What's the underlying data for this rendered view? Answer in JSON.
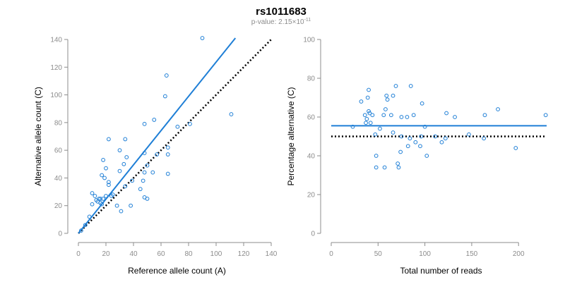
{
  "title": "rs1011683",
  "subtitle": {
    "prefix": "p-value: ",
    "mantissa": "2.15",
    "times": "×10",
    "exponent": "-11"
  },
  "colors": {
    "accent": "#1f7fd6",
    "axis": "#8c8c8c",
    "reference": "#000000"
  },
  "chart_data": [
    {
      "type": "scatter",
      "title": "",
      "xlabel": "Reference allele count (A)",
      "ylabel": "Alternative allele count (C)",
      "xlim": [
        0,
        140
      ],
      "ylim": [
        0,
        140
      ],
      "xticks": [
        "0",
        "20",
        "40",
        "60",
        "80",
        "100",
        "120",
        "140"
      ],
      "yticks": [
        "0",
        "20",
        "40",
        "60",
        "80",
        "100",
        "120",
        "140"
      ],
      "points": [
        {
          "x": 2,
          "y": 2
        },
        {
          "x": 5,
          "y": 6
        },
        {
          "x": 8,
          "y": 12
        },
        {
          "x": 10,
          "y": 21
        },
        {
          "x": 10,
          "y": 29
        },
        {
          "x": 12,
          "y": 27
        },
        {
          "x": 13,
          "y": 24
        },
        {
          "x": 14,
          "y": 23
        },
        {
          "x": 15,
          "y": 25
        },
        {
          "x": 16,
          "y": 22
        },
        {
          "x": 16,
          "y": 25
        },
        {
          "x": 17,
          "y": 21
        },
        {
          "x": 17,
          "y": 42
        },
        {
          "x": 18,
          "y": 53
        },
        {
          "x": 18,
          "y": 25
        },
        {
          "x": 19,
          "y": 40
        },
        {
          "x": 20,
          "y": 27
        },
        {
          "x": 20,
          "y": 47
        },
        {
          "x": 22,
          "y": 68
        },
        {
          "x": 22,
          "y": 37
        },
        {
          "x": 22,
          "y": 35
        },
        {
          "x": 24,
          "y": 27
        },
        {
          "x": 25,
          "y": 28
        },
        {
          "x": 28,
          "y": 20
        },
        {
          "x": 30,
          "y": 60
        },
        {
          "x": 30,
          "y": 45
        },
        {
          "x": 31,
          "y": 16
        },
        {
          "x": 33,
          "y": 50
        },
        {
          "x": 34,
          "y": 68
        },
        {
          "x": 34,
          "y": 34
        },
        {
          "x": 35,
          "y": 55
        },
        {
          "x": 38,
          "y": 20
        },
        {
          "x": 39,
          "y": 38
        },
        {
          "x": 45,
          "y": 32
        },
        {
          "x": 47,
          "y": 38
        },
        {
          "x": 48,
          "y": 26
        },
        {
          "x": 48,
          "y": 44
        },
        {
          "x": 48,
          "y": 58
        },
        {
          "x": 48,
          "y": 79
        },
        {
          "x": 50,
          "y": 25
        },
        {
          "x": 50,
          "y": 49
        },
        {
          "x": 54,
          "y": 44
        },
        {
          "x": 55,
          "y": 82
        },
        {
          "x": 57,
          "y": 57
        },
        {
          "x": 63,
          "y": 99
        },
        {
          "x": 64,
          "y": 114
        },
        {
          "x": 65,
          "y": 62
        },
        {
          "x": 65,
          "y": 57
        },
        {
          "x": 65,
          "y": 43
        },
        {
          "x": 72,
          "y": 77
        },
        {
          "x": 81,
          "y": 79
        },
        {
          "x": 90,
          "y": 141
        },
        {
          "x": 111,
          "y": 86
        }
      ],
      "fit_line": {
        "x": [
          0,
          114
        ],
        "y": [
          0,
          141
        ]
      },
      "reference_line": {
        "x": [
          0,
          140
        ],
        "y": [
          0,
          140
        ]
      }
    },
    {
      "type": "scatter",
      "title": "",
      "xlabel": "Total number of reads",
      "ylabel": "Percentage alternative (C)",
      "xlim": [
        0,
        230
      ],
      "ylim": [
        0,
        100
      ],
      "xticks": [
        "0",
        "50",
        "100",
        "150",
        "200"
      ],
      "yticks": [
        "0",
        "20",
        "40",
        "60",
        "80",
        "100"
      ],
      "points": [
        {
          "x": 23,
          "y": 55
        },
        {
          "x": 32,
          "y": 68
        },
        {
          "x": 36,
          "y": 61
        },
        {
          "x": 37,
          "y": 57
        },
        {
          "x": 38,
          "y": 59
        },
        {
          "x": 39,
          "y": 70
        },
        {
          "x": 40,
          "y": 63
        },
        {
          "x": 40,
          "y": 74
        },
        {
          "x": 41,
          "y": 62
        },
        {
          "x": 42,
          "y": 57
        },
        {
          "x": 44,
          "y": 61
        },
        {
          "x": 47,
          "y": 51
        },
        {
          "x": 48,
          "y": 40
        },
        {
          "x": 48,
          "y": 34
        },
        {
          "x": 52,
          "y": 54
        },
        {
          "x": 56,
          "y": 61
        },
        {
          "x": 57,
          "y": 34
        },
        {
          "x": 58,
          "y": 64
        },
        {
          "x": 59,
          "y": 71
        },
        {
          "x": 60,
          "y": 69
        },
        {
          "x": 64,
          "y": 61
        },
        {
          "x": 66,
          "y": 52
        },
        {
          "x": 66,
          "y": 71
        },
        {
          "x": 69,
          "y": 76
        },
        {
          "x": 71,
          "y": 36
        },
        {
          "x": 72,
          "y": 34
        },
        {
          "x": 74,
          "y": 42
        },
        {
          "x": 75,
          "y": 50
        },
        {
          "x": 75,
          "y": 60
        },
        {
          "x": 81,
          "y": 60
        },
        {
          "x": 82,
          "y": 45
        },
        {
          "x": 84,
          "y": 49
        },
        {
          "x": 85,
          "y": 76
        },
        {
          "x": 88,
          "y": 61
        },
        {
          "x": 90,
          "y": 47
        },
        {
          "x": 95,
          "y": 45
        },
        {
          "x": 96,
          "y": 50
        },
        {
          "x": 97,
          "y": 67
        },
        {
          "x": 100,
          "y": 55
        },
        {
          "x": 102,
          "y": 40
        },
        {
          "x": 111,
          "y": 50
        },
        {
          "x": 118,
          "y": 47
        },
        {
          "x": 122,
          "y": 49
        },
        {
          "x": 123,
          "y": 62
        },
        {
          "x": 132,
          "y": 60
        },
        {
          "x": 147,
          "y": 51
        },
        {
          "x": 163,
          "y": 49
        },
        {
          "x": 164,
          "y": 61
        },
        {
          "x": 178,
          "y": 64
        },
        {
          "x": 197,
          "y": 44
        },
        {
          "x": 229,
          "y": 61
        }
      ],
      "fit_line": {
        "x": [
          0,
          230
        ],
        "y": [
          55.5,
          55.5
        ]
      },
      "reference_line": {
        "x": [
          0,
          230
        ],
        "y": [
          50,
          50
        ]
      }
    }
  ]
}
